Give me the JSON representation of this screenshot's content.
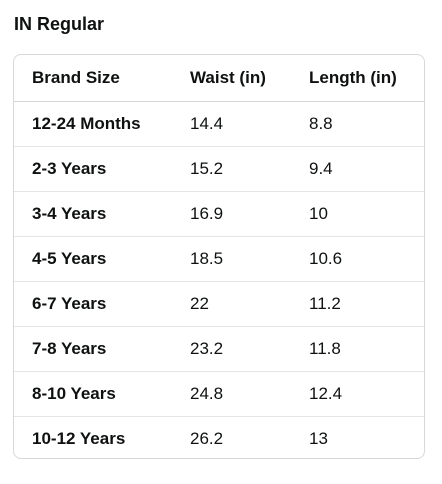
{
  "title": "IN Regular",
  "table": {
    "headers": [
      "Brand Size",
      "Waist (in)",
      "Length (in)"
    ],
    "rows": [
      [
        "12-24 Months",
        "14.4",
        "8.8"
      ],
      [
        "2-3 Years",
        "15.2",
        "9.4"
      ],
      [
        "3-4 Years",
        "16.9",
        "10"
      ],
      [
        "4-5 Years",
        "18.5",
        "10.6"
      ],
      [
        "6-7 Years",
        "22",
        "11.2"
      ],
      [
        "7-8 Years",
        "23.2",
        "11.8"
      ],
      [
        "8-10 Years",
        "24.8",
        "12.4"
      ],
      [
        "10-12 Years",
        "26.2",
        "13"
      ]
    ]
  }
}
